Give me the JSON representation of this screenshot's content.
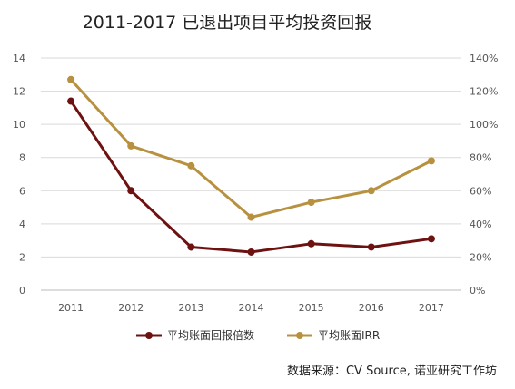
{
  "chart_data": {
    "type": "line",
    "title": "2011-2017 已退出项目平均投资回报",
    "categories": [
      "2011",
      "2012",
      "2013",
      "2014",
      "2015",
      "2016",
      "2017"
    ],
    "y_left": {
      "ticks": [
        "0",
        "2",
        "4",
        "6",
        "8",
        "10",
        "12",
        "14"
      ],
      "ylim": [
        0,
        14
      ]
    },
    "y_right": {
      "ticks": [
        "0%",
        "20%",
        "40%",
        "60%",
        "80%",
        "100%",
        "120%",
        "140%"
      ],
      "ylim": [
        0,
        140
      ]
    },
    "series": [
      {
        "name": "平均账面回报倍数",
        "axis": "left",
        "color": "#6e1111",
        "values": [
          11.4,
          6.0,
          2.6,
          2.3,
          2.8,
          2.6,
          3.1
        ]
      },
      {
        "name": "平均账面IRR",
        "axis": "right",
        "color": "#b89140",
        "values": [
          127,
          87,
          75,
          44,
          53,
          60,
          78
        ]
      }
    ],
    "grid": true,
    "legend_position": "bottom"
  },
  "source_text": "数据来源：CV Source, 诺亚研究工作坊"
}
